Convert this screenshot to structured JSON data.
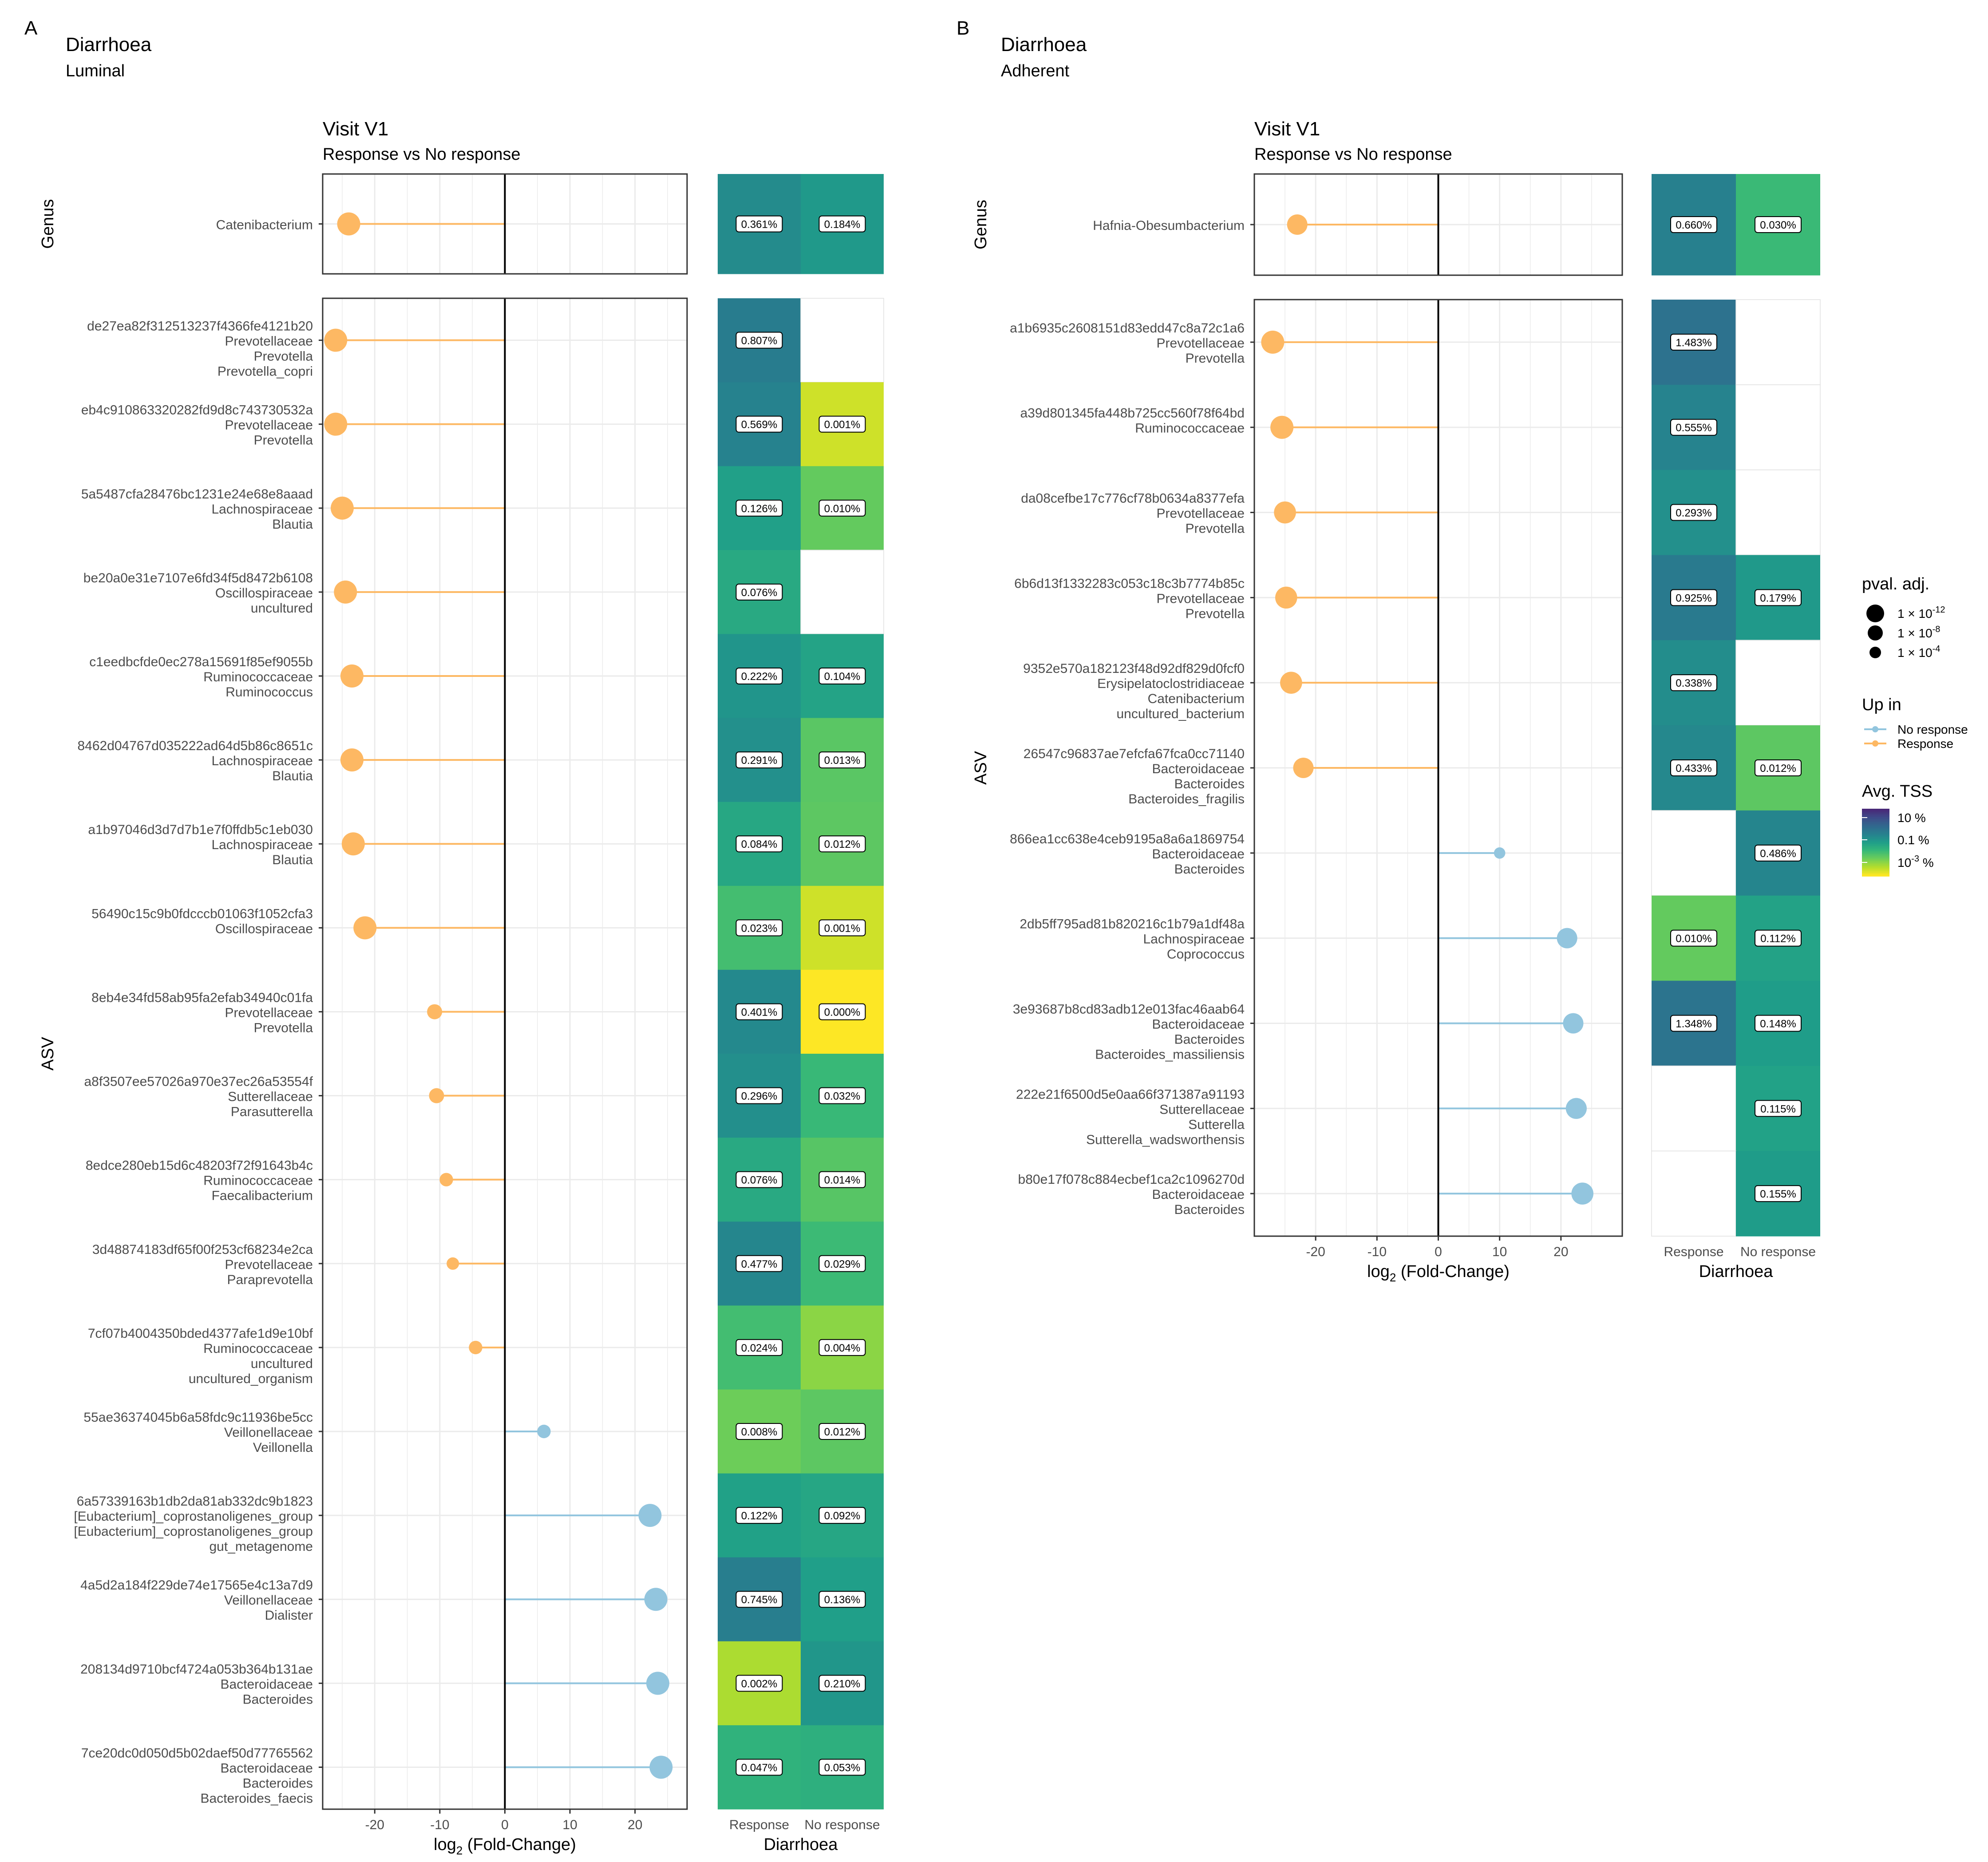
{
  "figure_note": "Two-panel forest-plot + heatmap figure",
  "colors": {
    "response": "#FDB863",
    "no_response": "#92C5DE",
    "axis": "#000000",
    "grid": "#EBEBEB",
    "label_box": "#ffffff"
  },
  "legend": {
    "pval_title": "pval. adj.",
    "pval_entries": [
      {
        "base": "1 × 10",
        "exp": "-12"
      },
      {
        "base": "1 × 10",
        "exp": "-8"
      },
      {
        "base": "1 × 10",
        "exp": "-4"
      }
    ],
    "upin_title": "Up in",
    "upin_entries": [
      "No response",
      "Response"
    ],
    "tss_title": "Avg. TSS",
    "tss_entries": [
      {
        "text": "10 %",
        "base": "",
        "exp": ""
      },
      {
        "text": "0.1 %",
        "base": "",
        "exp": ""
      },
      {
        "text": "",
        "base": "10",
        "exp": "-3",
        "suffix": " %"
      }
    ]
  },
  "chart_data": [
    {
      "type": "lollipop+heatmap",
      "panel_letter": "A",
      "title": "Diarrhoea",
      "subtitle": "Luminal",
      "plot_title": "Visit V1",
      "plot_subtitle": "Response vs No response",
      "xlabel_base": "log",
      "xlabel_sub": "2",
      "xlabel_rest": " (Fold-Change)",
      "xlim": [
        -28,
        28
      ],
      "xticks": [
        -20,
        -10,
        0,
        10,
        20
      ],
      "xtick_labels": [
        "-20",
        "-10",
        "0",
        "10",
        "20"
      ],
      "heat_xlabel": "Diarrhoea",
      "heat_columns": [
        "Response",
        "No response"
      ],
      "genus_facet": "Genus",
      "asv_facet": "ASV",
      "genus_rows": [
        {
          "label": [
            "Catenibacterium"
          ],
          "lfc": -24,
          "size": 3,
          "heat": [
            "0.361%",
            "0.184%"
          ]
        }
      ],
      "asv_rows": [
        {
          "label": [
            "de27ea82f312513237f4366fe4121b20",
            "Prevotellaceae",
            "Prevotella",
            "Prevotella_copri"
          ],
          "lfc": -26,
          "size": 3,
          "heat": [
            "0.807%",
            null
          ]
        },
        {
          "label": [
            "eb4c910863320282fd9d8c743730532a",
            "Prevotellaceae",
            "Prevotella"
          ],
          "lfc": -26,
          "size": 3,
          "heat": [
            "0.569%",
            "0.001%"
          ]
        },
        {
          "label": [
            "5a5487cfa28476bc1231e24e68e8aaad",
            "Lachnospiraceae",
            "Blautia"
          ],
          "lfc": -25,
          "size": 3,
          "heat": [
            "0.126%",
            "0.010%"
          ]
        },
        {
          "label": [
            "be20a0e31e7107e6fd34f5d8472b6108",
            "Oscillospiraceae",
            "uncultured"
          ],
          "lfc": -24.5,
          "size": 3,
          "heat": [
            "0.076%",
            null
          ]
        },
        {
          "label": [
            "c1eedbcfde0ec278a15691f85ef9055b",
            "Ruminococcaceae",
            "Ruminococcus"
          ],
          "lfc": -23.5,
          "size": 3,
          "heat": [
            "0.222%",
            "0.104%"
          ]
        },
        {
          "label": [
            "8462d04767d035222ad64d5b86c8651c",
            "Lachnospiraceae",
            "Blautia"
          ],
          "lfc": -23.5,
          "size": 3,
          "heat": [
            "0.291%",
            "0.013%"
          ]
        },
        {
          "label": [
            "a1b97046d3d7d7b1e7f0ffdb5c1eb030",
            "Lachnospiraceae",
            "Blautia"
          ],
          "lfc": -23.3,
          "size": 3,
          "heat": [
            "0.084%",
            "0.012%"
          ]
        },
        {
          "label": [
            "56490c15c9b0fdcccb01063f1052cfa3",
            "Oscillospiraceae"
          ],
          "lfc": -21.5,
          "size": 3,
          "heat": [
            "0.023%",
            "0.001%"
          ]
        },
        {
          "label": [
            "8eb4e34fd58ab95fa2efab34940c01fa",
            "Prevotellaceae",
            "Prevotella"
          ],
          "lfc": -10.8,
          "size": 1.5,
          "heat": [
            "0.401%",
            "0.000%"
          ]
        },
        {
          "label": [
            "a8f3507ee57026a970e37ec26a53554f",
            "Sutterellaceae",
            "Parasutterella"
          ],
          "lfc": -10.5,
          "size": 1.5,
          "heat": [
            "0.296%",
            "0.032%"
          ]
        },
        {
          "label": [
            "8edce280eb15d6c48203f72f91643b4c",
            "Ruminococcaceae",
            "Faecalibacterium"
          ],
          "lfc": -9,
          "size": 1.2,
          "heat": [
            "0.076%",
            "0.014%"
          ]
        },
        {
          "label": [
            "3d48874183df65f00f253cf68234e2ca",
            "Prevotellaceae",
            "Paraprevotella"
          ],
          "lfc": -8,
          "size": 1,
          "heat": [
            "0.477%",
            "0.029%"
          ]
        },
        {
          "label": [
            "7cf07b4004350bded4377afe1d9e10bf",
            "Ruminococcaceae",
            "uncultured",
            "uncultured_organism"
          ],
          "lfc": -4.5,
          "size": 1.2,
          "heat": [
            "0.024%",
            "0.004%"
          ]
        },
        {
          "label": [
            "55ae36374045b6a58fdc9c11936be5cc",
            "Veillonellaceae",
            "Veillonella"
          ],
          "lfc": 6,
          "size": 1.2,
          "heat": [
            "0.008%",
            "0.012%"
          ]
        },
        {
          "label": [
            "6a57339163b1db2da81ab332dc9b1823",
            "[Eubacterium]_coprostanoligenes_group",
            "[Eubacterium]_coprostanoligenes_group",
            "gut_metagenome"
          ],
          "lfc": 22.3,
          "size": 3,
          "heat": [
            "0.122%",
            "0.092%"
          ]
        },
        {
          "label": [
            "4a5d2a184f229de74e17565e4c13a7d9",
            "Veillonellaceae",
            "Dialister"
          ],
          "lfc": 23.2,
          "size": 3,
          "heat": [
            "0.745%",
            "0.136%"
          ]
        },
        {
          "label": [
            "208134d9710bcf4724a053b364b131ae",
            "Bacteroidaceae",
            "Bacteroides"
          ],
          "lfc": 23.5,
          "size": 3,
          "heat": [
            "0.002%",
            "0.210%"
          ]
        },
        {
          "label": [
            "7ce20dc0d050d5b02daef50d77765562",
            "Bacteroidaceae",
            "Bacteroides",
            "Bacteroides_faecis"
          ],
          "lfc": 24,
          "size": 3,
          "heat": [
            "0.047%",
            "0.053%"
          ]
        }
      ]
    },
    {
      "type": "lollipop+heatmap",
      "panel_letter": "B",
      "title": "Diarrhoea",
      "subtitle": "Adherent",
      "plot_title": "Visit V1",
      "plot_subtitle": "Response vs No response",
      "xlabel_base": "log",
      "xlabel_sub": "2",
      "xlabel_rest": " (Fold-Change)",
      "xlim": [
        -30,
        30
      ],
      "xticks": [
        -20,
        -10,
        0,
        10,
        20
      ],
      "xtick_labels": [
        "-20",
        "-10",
        "0",
        "10",
        "20"
      ],
      "heat_xlabel": "Diarrhoea",
      "heat_columns": [
        "Response",
        "No response"
      ],
      "genus_facet": "Genus",
      "asv_facet": "ASV",
      "genus_rows": [
        {
          "label": [
            "Hafnia-Obesumbacterium"
          ],
          "lfc": -23,
          "size": 2.5,
          "heat": [
            "0.660%",
            "0.030%"
          ]
        }
      ],
      "asv_rows": [
        {
          "label": [
            "a1b6935c2608151d83edd47c8a72c1a6",
            "Prevotellaceae",
            "Prevotella"
          ],
          "lfc": -27,
          "size": 3,
          "heat": [
            "1.483%",
            null
          ]
        },
        {
          "label": [
            "a39d801345fa448b725cc560f78f64bd",
            "Ruminococcaceae"
          ],
          "lfc": -25.5,
          "size": 3,
          "heat": [
            "0.555%",
            null
          ]
        },
        {
          "label": [
            "da08cefbe17c776cf78b0634a8377efa",
            "Prevotellaceae",
            "Prevotella"
          ],
          "lfc": -25,
          "size": 2.8,
          "heat": [
            "0.293%",
            null
          ]
        },
        {
          "label": [
            "6b6d13f1332283c053c18c3b7774b85c",
            "Prevotellaceae",
            "Prevotella"
          ],
          "lfc": -24.8,
          "size": 2.8,
          "heat": [
            "0.925%",
            "0.179%"
          ]
        },
        {
          "label": [
            "9352e570a182123f48d92df829d0fcf0",
            "Erysipelatoclostridiaceae",
            "Catenibacterium",
            "uncultured_bacterium"
          ],
          "lfc": -24,
          "size": 2.8,
          "heat": [
            "0.338%",
            null
          ]
        },
        {
          "label": [
            "26547c96837ae7efcfa67fca0cc71140",
            "Bacteroidaceae",
            "Bacteroides",
            "Bacteroides_fragilis"
          ],
          "lfc": -22,
          "size": 2.5,
          "heat": [
            "0.433%",
            "0.012%"
          ]
        },
        {
          "label": [
            "866ea1cc638e4ceb9195a8a6a1869754",
            "Bacteroidaceae",
            "Bacteroides"
          ],
          "lfc": 10,
          "size": 0.8,
          "heat": [
            null,
            "0.486%"
          ]
        },
        {
          "label": [
            "2db5ff795ad81b820216c1b79a1df48a",
            "Lachnospiraceae",
            "Coprococcus"
          ],
          "lfc": 21,
          "size": 2.5,
          "heat": [
            "0.010%",
            "0.112%"
          ]
        },
        {
          "label": [
            "3e93687b8cd83adb12e013fac46aab64",
            "Bacteroidaceae",
            "Bacteroides",
            "Bacteroides_massiliensis"
          ],
          "lfc": 22,
          "size": 2.5,
          "heat": [
            "1.348%",
            "0.148%"
          ]
        },
        {
          "label": [
            "222e21f6500d5e0aa66f371387a91193",
            "Sutterellaceae",
            "Sutterella",
            "Sutterella_wadsworthensis"
          ],
          "lfc": 22.5,
          "size": 2.6,
          "heat": [
            null,
            "0.115%"
          ]
        },
        {
          "label": [
            "b80e17f078c884ecbef1ca2c1096270d",
            "Bacteroidaceae",
            "Bacteroides"
          ],
          "lfc": 23.5,
          "size": 2.8,
          "heat": [
            null,
            "0.155%"
          ]
        }
      ]
    }
  ]
}
